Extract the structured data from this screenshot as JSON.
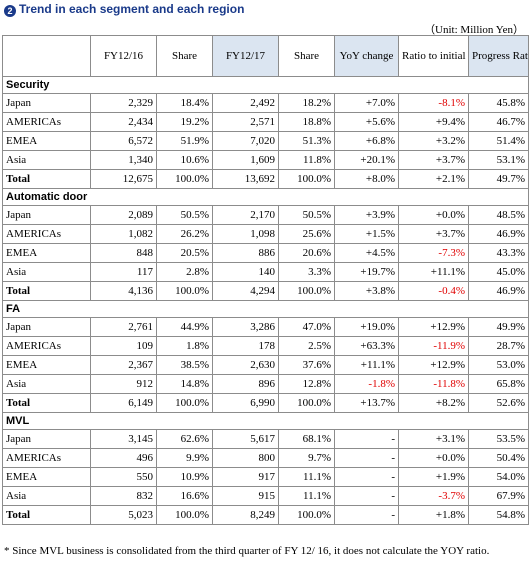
{
  "title": "Trend in each segment and each region",
  "title_mark": "2",
  "unit": "（Unit: Million Yen）",
  "headers": [
    "",
    "FY12/16",
    "Share",
    "FY12/17",
    "Share",
    "YoY change",
    "Ratio to initial plan",
    "Progress Rate"
  ],
  "sections": [
    {
      "name": "Security",
      "rows": [
        {
          "label": "Japan",
          "fy16": "2,329",
          "share16": "18.4%",
          "fy17": "2,492",
          "share17": "18.2%",
          "yoy": "+7.0%",
          "plan": "-8.1%",
          "progress": "45.8%"
        },
        {
          "label": "AMERICAs",
          "fy16": "2,434",
          "share16": "19.2%",
          "fy17": "2,571",
          "share17": "18.8%",
          "yoy": "+5.6%",
          "plan": "+9.4%",
          "progress": "46.7%"
        },
        {
          "label": "EMEA",
          "fy16": "6,572",
          "share16": "51.9%",
          "fy17": "7,020",
          "share17": "51.3%",
          "yoy": "+6.8%",
          "plan": "+3.2%",
          "progress": "51.4%"
        },
        {
          "label": "Asia",
          "fy16": "1,340",
          "share16": "10.6%",
          "fy17": "1,609",
          "share17": "11.8%",
          "yoy": "+20.1%",
          "plan": "+3.7%",
          "progress": "53.1%"
        },
        {
          "label": "Total",
          "fy16": "12,675",
          "share16": "100.0%",
          "fy17": "13,692",
          "share17": "100.0%",
          "yoy": "+8.0%",
          "plan": "+2.1%",
          "progress": "49.7%"
        }
      ]
    },
    {
      "name": "Automatic door",
      "rows": [
        {
          "label": "Japan",
          "fy16": "2,089",
          "share16": "50.5%",
          "fy17": "2,170",
          "share17": "50.5%",
          "yoy": "+3.9%",
          "plan": "+0.0%",
          "progress": "48.5%"
        },
        {
          "label": "AMERICAs",
          "fy16": "1,082",
          "share16": "26.2%",
          "fy17": "1,098",
          "share17": "25.6%",
          "yoy": "+1.5%",
          "plan": "+3.7%",
          "progress": "46.9%"
        },
        {
          "label": "EMEA",
          "fy16": "848",
          "share16": "20.5%",
          "fy17": "886",
          "share17": "20.6%",
          "yoy": "+4.5%",
          "plan": "-7.3%",
          "progress": "43.3%"
        },
        {
          "label": "Asia",
          "fy16": "117",
          "share16": "2.8%",
          "fy17": "140",
          "share17": "3.3%",
          "yoy": "+19.7%",
          "plan": "+11.1%",
          "progress": "45.0%"
        },
        {
          "label": "Total",
          "fy16": "4,136",
          "share16": "100.0%",
          "fy17": "4,294",
          "share17": "100.0%",
          "yoy": "+3.8%",
          "plan": "-0.4%",
          "progress": "46.9%"
        }
      ]
    },
    {
      "name": "FA",
      "rows": [
        {
          "label": "Japan",
          "fy16": "2,761",
          "share16": "44.9%",
          "fy17": "3,286",
          "share17": "47.0%",
          "yoy": "+19.0%",
          "plan": "+12.9%",
          "progress": "49.9%"
        },
        {
          "label": "AMERICAs",
          "fy16": "109",
          "share16": "1.8%",
          "fy17": "178",
          "share17": "2.5%",
          "yoy": "+63.3%",
          "plan": "-11.9%",
          "progress": "28.7%"
        },
        {
          "label": "EMEA",
          "fy16": "2,367",
          "share16": "38.5%",
          "fy17": "2,630",
          "share17": "37.6%",
          "yoy": "+11.1%",
          "plan": "+12.9%",
          "progress": "53.0%"
        },
        {
          "label": "Asia",
          "fy16": "912",
          "share16": "14.8%",
          "fy17": "896",
          "share17": "12.8%",
          "yoy": "-1.8%",
          "plan": "-11.8%",
          "progress": "65.8%"
        },
        {
          "label": "Total",
          "fy16": "6,149",
          "share16": "100.0%",
          "fy17": "6,990",
          "share17": "100.0%",
          "yoy": "+13.7%",
          "plan": "+8.2%",
          "progress": "52.6%"
        }
      ]
    },
    {
      "name": "MVL",
      "rows": [
        {
          "label": "Japan",
          "fy16": "3,145",
          "share16": "62.6%",
          "fy17": "5,617",
          "share17": "68.1%",
          "yoy": "-",
          "plan": "+3.1%",
          "progress": "53.5%"
        },
        {
          "label": "AMERICAs",
          "fy16": "496",
          "share16": "9.9%",
          "fy17": "800",
          "share17": "9.7%",
          "yoy": "-",
          "plan": "+0.0%",
          "progress": "50.4%"
        },
        {
          "label": "EMEA",
          "fy16": "550",
          "share16": "10.9%",
          "fy17": "917",
          "share17": "11.1%",
          "yoy": "-",
          "plan": "+1.9%",
          "progress": "54.0%"
        },
        {
          "label": "Asia",
          "fy16": "832",
          "share16": "16.6%",
          "fy17": "915",
          "share17": "11.1%",
          "yoy": "-",
          "plan": "-3.7%",
          "progress": "67.9%"
        },
        {
          "label": "Total",
          "fy16": "5,023",
          "share16": "100.0%",
          "fy17": "8,249",
          "share17": "100.0%",
          "yoy": "-",
          "plan": "+1.8%",
          "progress": "54.8%"
        }
      ]
    }
  ],
  "note": "* Since MVL business is consolidated from the third quarter of FY 12/ 16, it does not calculate the YOY ratio.",
  "colors": {
    "header_fill": "#dbe5f1",
    "negative": "#e00000",
    "title": "#1a3a8a"
  }
}
